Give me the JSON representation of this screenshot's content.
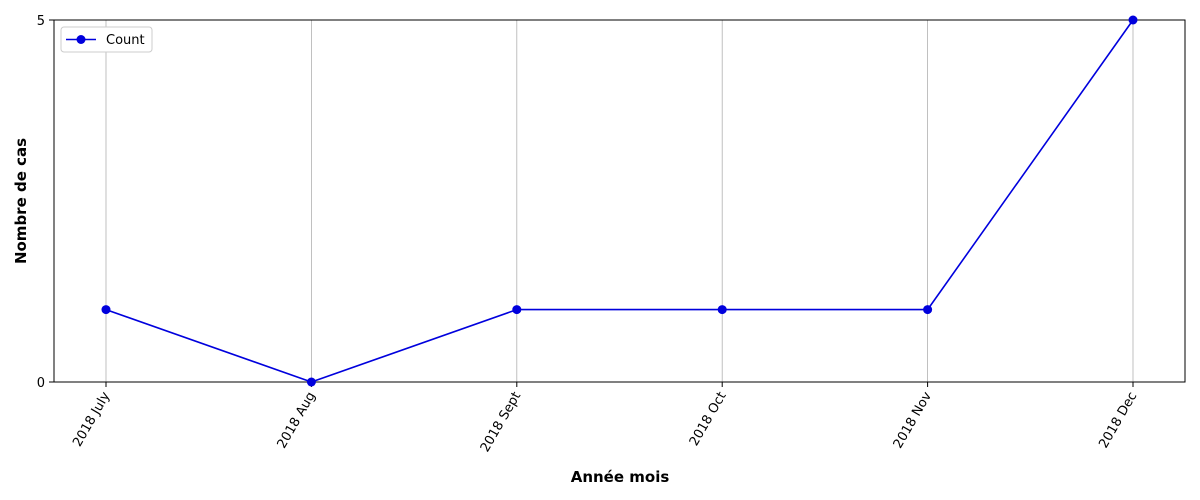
{
  "chart_data": {
    "type": "line",
    "title": "",
    "xlabel": "Année mois",
    "ylabel": "Nombre de cas",
    "categories": [
      "2018  July",
      "2018  Aug",
      "2018  Sept",
      "2018  Oct",
      "2018  Nov",
      "2018  Dec"
    ],
    "series": [
      {
        "name": "Count",
        "values": [
          1,
          0,
          1,
          1,
          1,
          5
        ],
        "color": "#0000dd",
        "marker": "circle"
      }
    ],
    "ylim": [
      0,
      5
    ],
    "yticks": [
      "0",
      "5"
    ],
    "grid": "vertical",
    "legend_position": "top-left",
    "xtick_rotation": "60 degrees"
  }
}
